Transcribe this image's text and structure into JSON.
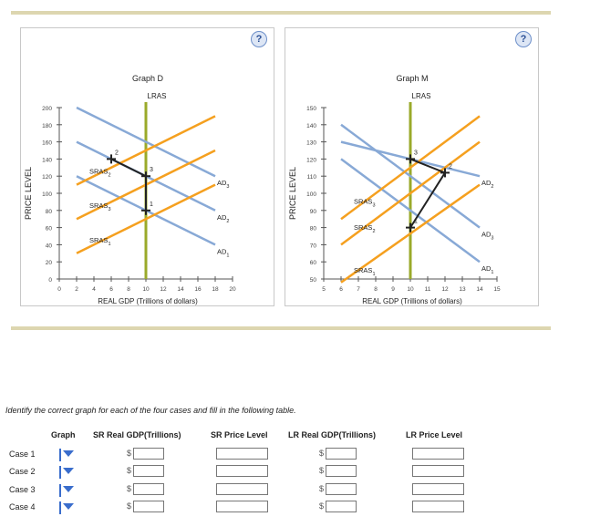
{
  "help_label": "?",
  "graphs": [
    {
      "id": "graph-d",
      "title": "Graph D",
      "ylabel": "PRICE LEVEL",
      "xlabel": "REAL GDP (Trillions of dollars)",
      "x_ticks": [
        "0",
        "2",
        "4",
        "6",
        "8",
        "10",
        "12",
        "14",
        "16",
        "18",
        "20"
      ],
      "y_ticks": [
        "0",
        "20",
        "40",
        "60",
        "80",
        "100",
        "120",
        "140",
        "160",
        "180",
        "200"
      ],
      "xlim": [
        0,
        20
      ],
      "ylim": [
        0,
        200
      ],
      "lras": {
        "label": "LRAS",
        "x": 10
      },
      "ad": [
        {
          "label": "AD",
          "sub": "1",
          "from": [
            2,
            120
          ],
          "to": [
            18,
            40
          ]
        },
        {
          "label": "AD",
          "sub": "2",
          "from": [
            2,
            160
          ],
          "to": [
            18,
            80
          ]
        },
        {
          "label": "AD",
          "sub": "3",
          "from": [
            2,
            200
          ],
          "to": [
            18,
            120
          ]
        }
      ],
      "sras": [
        {
          "label": "SRAS",
          "sub": "1",
          "from": [
            2,
            30
          ],
          "to": [
            18,
            110
          ]
        },
        {
          "label": "SRAS",
          "sub": "3",
          "from": [
            2,
            70
          ],
          "to": [
            18,
            150
          ]
        },
        {
          "label": "SRAS",
          "sub": "2",
          "from": [
            2,
            110
          ],
          "to": [
            18,
            190
          ]
        }
      ],
      "path": [
        [
          6,
          140
        ],
        [
          10,
          120
        ],
        [
          10,
          80
        ]
      ],
      "points": [
        {
          "label": "1",
          "x": 10,
          "y": 80
        },
        {
          "label": "2",
          "x": 6,
          "y": 140
        },
        {
          "label": "3",
          "x": 10,
          "y": 120
        }
      ]
    },
    {
      "id": "graph-m",
      "title": "Graph M",
      "ylabel": "PRICE LEVEL",
      "xlabel": "REAL GDP (Trillions of dollars)",
      "x_ticks": [
        "5",
        "6",
        "7",
        "8",
        "9",
        "10",
        "11",
        "12",
        "13",
        "14",
        "15"
      ],
      "y_ticks": [
        "50",
        "60",
        "70",
        "80",
        "90",
        "100",
        "110",
        "120",
        "130",
        "140",
        "150"
      ],
      "xlim": [
        5,
        15
      ],
      "ylim": [
        50,
        150
      ],
      "lras": {
        "label": "LRAS",
        "x": 10
      },
      "ad": [
        {
          "label": "AD",
          "sub": "1",
          "from": [
            6,
            120
          ],
          "to": [
            14,
            60
          ]
        },
        {
          "label": "AD",
          "sub": "3",
          "from": [
            6,
            140
          ],
          "to": [
            14,
            80
          ]
        },
        {
          "label": "AD",
          "sub": "2",
          "from": [
            6,
            130
          ],
          "to": [
            14,
            110
          ]
        }
      ],
      "sras": [
        {
          "label": "SRAS",
          "sub": "1",
          "from": [
            6,
            45
          ],
          "to": [
            14,
            105
          ]
        },
        {
          "label": "SRAS",
          "sub": "2",
          "from": [
            6,
            70
          ],
          "to": [
            14,
            130
          ]
        },
        {
          "label": "SRAS",
          "sub": "3",
          "from": [
            6,
            85
          ],
          "to": [
            14,
            145
          ]
        }
      ],
      "path": [
        [
          10,
          120
        ],
        [
          12,
          112
        ],
        [
          10,
          80
        ]
      ],
      "points": [
        {
          "label": "1",
          "x": 10,
          "y": 80
        },
        {
          "label": "2",
          "x": 12,
          "y": 112
        },
        {
          "label": "3",
          "x": 10,
          "y": 120
        }
      ]
    }
  ],
  "instructions": "Identify the correct graph for each of the four cases and fill in the following table.",
  "table": {
    "headers": [
      "Graph",
      "SR Real GDP(Trillions)",
      "SR Price Level",
      "LR Real GDP(Trillions)",
      "LR Price Level"
    ],
    "currency": "$",
    "rows": [
      "Case 1",
      "Case 2",
      "Case 3",
      "Case 4"
    ]
  },
  "colors": {
    "ad": "#88a9d6",
    "sras": "#f5a01f",
    "lras": "#9aaa2a",
    "path": "#222222"
  }
}
